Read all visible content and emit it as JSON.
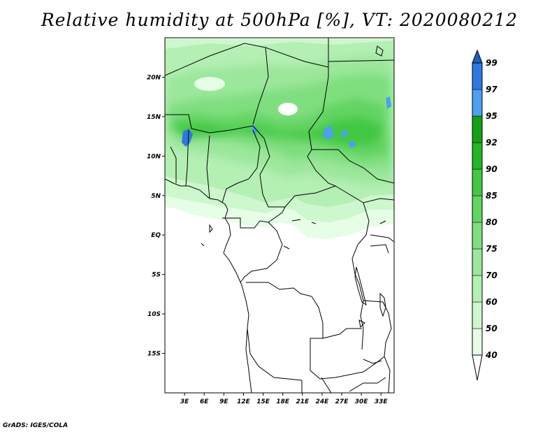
{
  "title": "Relative humidity at 500hPa [%], VT: 2020080212",
  "credit": "GrADS: IGES/COLA",
  "map": {
    "lon_range": [
      0,
      35
    ],
    "lat_range": [
      -20,
      25
    ],
    "lat_ticks": [
      {
        "value": 20,
        "label": "20N"
      },
      {
        "value": 15,
        "label": "15N"
      },
      {
        "value": 10,
        "label": "10N"
      },
      {
        "value": 5,
        "label": "5N"
      },
      {
        "value": 0,
        "label": "EQ"
      },
      {
        "value": -5,
        "label": "5S"
      },
      {
        "value": -10,
        "label": "10S"
      },
      {
        "value": -15,
        "label": "15S"
      }
    ],
    "lon_ticks": [
      {
        "value": 3,
        "label": "3E"
      },
      {
        "value": 6,
        "label": "6E"
      },
      {
        "value": 9,
        "label": "9E"
      },
      {
        "value": 12,
        "label": "12E"
      },
      {
        "value": 15,
        "label": "15E"
      },
      {
        "value": 18,
        "label": "18E"
      },
      {
        "value": 21,
        "label": "21E"
      },
      {
        "value": 24,
        "label": "24E"
      },
      {
        "value": 27,
        "label": "27E"
      },
      {
        "value": 30,
        "label": "30E"
      },
      {
        "value": 33,
        "label": "33E"
      }
    ]
  },
  "colorbar": {
    "levels": [
      "40",
      "50",
      "60",
      "70",
      "75",
      "80",
      "85",
      "90",
      "92",
      "95",
      "97",
      "99"
    ],
    "colors": [
      "#ffffff",
      "#e6fde6",
      "#cdf7cd",
      "#b4efb4",
      "#9be79b",
      "#7fdf7f",
      "#62d462",
      "#42c742",
      "#25b425",
      "#13a013",
      "#4d9ff0",
      "#2d78e0",
      "#1a5fc8"
    ]
  }
}
